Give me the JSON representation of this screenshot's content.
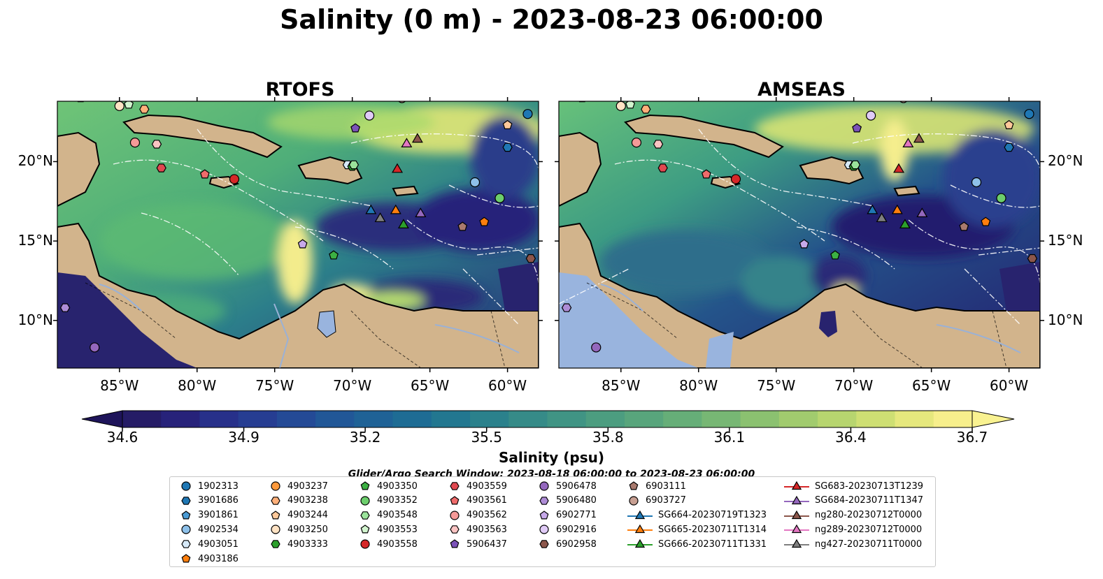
{
  "title": "Salinity (0 m) - 2023-08-23 06:00:00",
  "panels": [
    {
      "title": "RTOFS"
    },
    {
      "title": "AMSEAS"
    }
  ],
  "axes": {
    "lon_ticks": [
      "85°W",
      "80°W",
      "75°W",
      "70°W",
      "65°W",
      "60°W"
    ],
    "lat_ticks": [
      "20°N",
      "15°N",
      "10°N"
    ]
  },
  "map_extent": {
    "lon": [
      -89,
      -58
    ],
    "lat": [
      7,
      23.8
    ]
  },
  "colorbar": {
    "ticks": [
      "34.6",
      "34.9",
      "35.2",
      "35.5",
      "35.8",
      "36.1",
      "36.4",
      "36.7"
    ],
    "range": [
      34.6,
      36.7
    ],
    "label": "Salinity (psu)",
    "colormap": "summer-like: dark indigo → blue → teal → green → light yellow"
  },
  "search_window": "Glider/Argo Search Window: 2023-08-18 06:00:00 to 2023-08-23 06:00:00",
  "colors": {
    "land": "#d2b48c",
    "pacific_shade": "#99b4de",
    "low_salinity": "#271a6b",
    "mid_salinity": "#2e8c86",
    "high_salinity": "#f6ee8a"
  },
  "legend": [
    {
      "label": "1902313",
      "marker": "circle",
      "color": "#1f77b4"
    },
    {
      "label": "3901686",
      "marker": "hexagon",
      "color": "#1f77b4"
    },
    {
      "label": "3901861",
      "marker": "pentagon",
      "color": "#4a9bd4"
    },
    {
      "label": "4902534",
      "marker": "circle",
      "color": "#8ec1ea"
    },
    {
      "label": "4903051",
      "marker": "hexagon",
      "color": "#d6e9f8"
    },
    {
      "label": "4903186",
      "marker": "pentagon",
      "color": "#ff7f0e"
    },
    {
      "label": "4903237",
      "marker": "circle",
      "color": "#ff9a3c"
    },
    {
      "label": "4903238",
      "marker": "hexagon",
      "color": "#ffb07a"
    },
    {
      "label": "4903244",
      "marker": "pentagon",
      "color": "#ffc99a"
    },
    {
      "label": "4903250",
      "marker": "circle",
      "color": "#ffe3c4"
    },
    {
      "label": "4903333",
      "marker": "hexagon",
      "color": "#2ca02c"
    },
    {
      "label": "4903350",
      "marker": "pentagon",
      "color": "#3cb043"
    },
    {
      "label": "4903352",
      "marker": "circle",
      "color": "#6cce6c"
    },
    {
      "label": "4903548",
      "marker": "hexagon",
      "color": "#9be39b"
    },
    {
      "label": "4903553",
      "marker": "pentagon",
      "color": "#d2f5cf"
    },
    {
      "label": "4903558",
      "marker": "circle",
      "color": "#d62728"
    },
    {
      "label": "4903559",
      "marker": "hexagon",
      "color": "#e04850"
    },
    {
      "label": "4903561",
      "marker": "pentagon",
      "color": "#ef6b6b"
    },
    {
      "label": "4903562",
      "marker": "circle",
      "color": "#f59a98"
    },
    {
      "label": "4903563",
      "marker": "hexagon",
      "color": "#fbc4c3"
    },
    {
      "label": "5906437",
      "marker": "pentagon",
      "color": "#7b52b8"
    },
    {
      "label": "5906478",
      "marker": "circle",
      "color": "#9467bd"
    },
    {
      "label": "5906480",
      "marker": "hexagon",
      "color": "#ae8cd6"
    },
    {
      "label": "6902771",
      "marker": "pentagon",
      "color": "#c7a9ea"
    },
    {
      "label": "6902916",
      "marker": "circle",
      "color": "#e0cbf7"
    },
    {
      "label": "6902958",
      "marker": "hexagon",
      "color": "#8c564b"
    },
    {
      "label": "6903111",
      "marker": "pentagon",
      "color": "#a97a6e"
    },
    {
      "label": "6903727",
      "marker": "circle",
      "color": "#c79f92"
    },
    {
      "label": "SG664-20230719T1323",
      "marker": "triangle-line",
      "color": "#1f77b4"
    },
    {
      "label": "SG665-20230711T1314",
      "marker": "triangle-line",
      "color": "#ff7f0e"
    },
    {
      "label": "SG666-20230711T1331",
      "marker": "triangle-line",
      "color": "#2ca02c"
    },
    {
      "label": "SG683-20230713T1239",
      "marker": "triangle-line",
      "color": "#d62728"
    },
    {
      "label": "SG684-20230711T1347",
      "marker": "triangle-line",
      "color": "#9467bd"
    },
    {
      "label": "ng280-20230712T0000",
      "marker": "triangle-line",
      "color": "#8c564b"
    },
    {
      "label": "ng289-20230712T0000",
      "marker": "triangle-line",
      "color": "#e377c2"
    },
    {
      "label": "ng427-20230711T0000",
      "marker": "triangle-line",
      "color": "#7f7f7f"
    }
  ],
  "markers": [
    {
      "id": "1902313",
      "lon": -58.7,
      "lat": 23.0
    },
    {
      "id": "3901686",
      "lon": -60.0,
      "lat": 20.9
    },
    {
      "id": "3901861",
      "lon": -87.5,
      "lat": 24.0
    },
    {
      "id": "4902534",
      "lon": -62.1,
      "lat": 18.7
    },
    {
      "id": "4903051",
      "lon": -70.3,
      "lat": 19.8
    },
    {
      "id": "4903186",
      "lon": -61.5,
      "lat": 16.2
    },
    {
      "id": "4903237",
      "lon": -66.7,
      "lat": 24.2
    },
    {
      "id": "4903238",
      "lon": -83.4,
      "lat": 23.3
    },
    {
      "id": "4903244",
      "lon": -60.0,
      "lat": 22.3
    },
    {
      "id": "4903250",
      "lon": -85.0,
      "lat": 23.5
    },
    {
      "id": "4903333",
      "lon": -70.0,
      "lat": 19.7
    },
    {
      "id": "4903350",
      "lon": -71.2,
      "lat": 14.1
    },
    {
      "id": "4903352",
      "lon": -60.5,
      "lat": 17.7
    },
    {
      "id": "4903548",
      "lon": -69.9,
      "lat": 19.8
    },
    {
      "id": "4903553",
      "lon": -84.4,
      "lat": 23.6
    },
    {
      "id": "4903558",
      "lon": -77.6,
      "lat": 18.9
    },
    {
      "id": "4903559",
      "lon": -82.3,
      "lat": 19.6
    },
    {
      "id": "4903561",
      "lon": -79.5,
      "lat": 19.2
    },
    {
      "id": "4903562",
      "lon": -84.0,
      "lat": 21.2
    },
    {
      "id": "4903563",
      "lon": -82.6,
      "lat": 21.1
    },
    {
      "id": "5906437",
      "lon": -69.8,
      "lat": 22.1
    },
    {
      "id": "5906478",
      "lon": -86.6,
      "lat": 8.3
    },
    {
      "id": "5906480",
      "lon": -88.5,
      "lat": 10.8
    },
    {
      "id": "6902771",
      "lon": -73.2,
      "lat": 14.8
    },
    {
      "id": "6902916",
      "lon": -68.9,
      "lat": 22.9
    },
    {
      "id": "6902958",
      "lon": -58.5,
      "lat": 13.9
    },
    {
      "id": "6903111",
      "lon": -62.9,
      "lat": 15.9
    },
    {
      "id": "6903727",
      "lon": -66.8,
      "lat": 24.0
    },
    {
      "id": "SG664-20230719T1323",
      "lon": -68.8,
      "lat": 16.9
    },
    {
      "id": "SG665-20230711T1314",
      "lon": -67.2,
      "lat": 16.9
    },
    {
      "id": "SG666-20230711T1331",
      "lon": -66.7,
      "lat": 16.0
    },
    {
      "id": "SG683-20230713T1239",
      "lon": -67.1,
      "lat": 19.5
    },
    {
      "id": "SG684-20230711T1347",
      "lon": -65.6,
      "lat": 16.7
    },
    {
      "id": "ng280-20230712T0000",
      "lon": -65.8,
      "lat": 21.4
    },
    {
      "id": "ng289-20230712T0000",
      "lon": -66.5,
      "lat": 21.1
    },
    {
      "id": "ng427-20230711T0000",
      "lon": -68.2,
      "lat": 16.4
    }
  ]
}
